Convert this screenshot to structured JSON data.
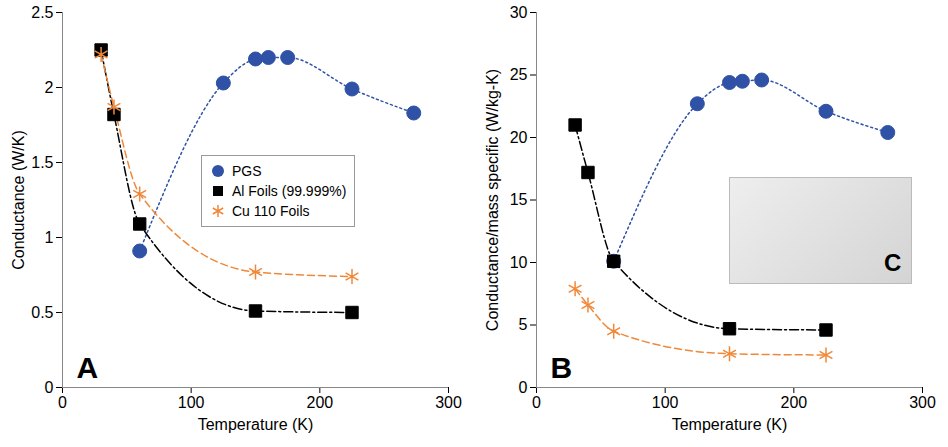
{
  "chart_data": [
    {
      "type": "line",
      "annotations": [
        "A"
      ],
      "x_label": "Temperature (K)",
      "y_label": "Conductance (W/K)",
      "xlim": [
        0,
        300
      ],
      "xticks": [
        0,
        100,
        200,
        300
      ],
      "ylim": [
        0,
        2.5
      ],
      "yticks": [
        0,
        0.5,
        1,
        1.5,
        2,
        2.5
      ],
      "legend": "center",
      "series": [
        {
          "name": "PGS",
          "color": "#2f52a6",
          "marker": "circle",
          "line_style": "dotted",
          "x": [
            60,
            125,
            150,
            160,
            175,
            225,
            273
          ],
          "values": [
            0.91,
            2.03,
            2.19,
            2.2,
            2.2,
            1.99,
            1.83
          ]
        },
        {
          "name": "Al Foils (99.999%)",
          "color": "#000000",
          "marker": "square",
          "line_style": "dashdot",
          "x": [
            30,
            40,
            60,
            150,
            225
          ],
          "values": [
            2.25,
            1.82,
            1.09,
            0.51,
            0.5
          ]
        },
        {
          "name": "Cu 110 Foils",
          "color": "#f0883a",
          "marker": "asterisk",
          "line_style": "dashed",
          "x": [
            30,
            40,
            60,
            150,
            225
          ],
          "values": [
            2.22,
            1.87,
            1.29,
            0.77,
            0.74
          ]
        }
      ]
    },
    {
      "type": "line",
      "annotations": [
        "B"
      ],
      "x_label": "Temperature (K)",
      "y_label": "Conductance/mass specific (W/kg-K)",
      "xlim": [
        0,
        300
      ],
      "xticks": [
        0,
        100,
        200,
        300
      ],
      "ylim": [
        0,
        30
      ],
      "yticks": [
        0,
        5,
        10,
        15,
        20,
        25,
        30
      ],
      "series": [
        {
          "name": "PGS",
          "color": "#2f52a6",
          "marker": "circle",
          "line_style": "dotted",
          "x": [
            60,
            125,
            150,
            160,
            175,
            225,
            273
          ],
          "values": [
            10.1,
            22.7,
            24.4,
            24.5,
            24.6,
            22.1,
            20.4
          ]
        },
        {
          "name": "Al Foils (99.999%)",
          "color": "#000000",
          "marker": "square",
          "line_style": "dashdot",
          "x": [
            30,
            40,
            60,
            150,
            225
          ],
          "values": [
            21,
            17.2,
            10.1,
            4.7,
            4.6
          ]
        },
        {
          "name": "Cu 110 Foils",
          "color": "#f0883a",
          "marker": "asterisk",
          "line_style": "dashed",
          "x": [
            30,
            40,
            60,
            150,
            225
          ],
          "values": [
            7.9,
            6.6,
            4.5,
            2.7,
            2.6
          ]
        }
      ]
    },
    {
      "type": "image",
      "annotations": [
        "C"
      ]
    }
  ]
}
